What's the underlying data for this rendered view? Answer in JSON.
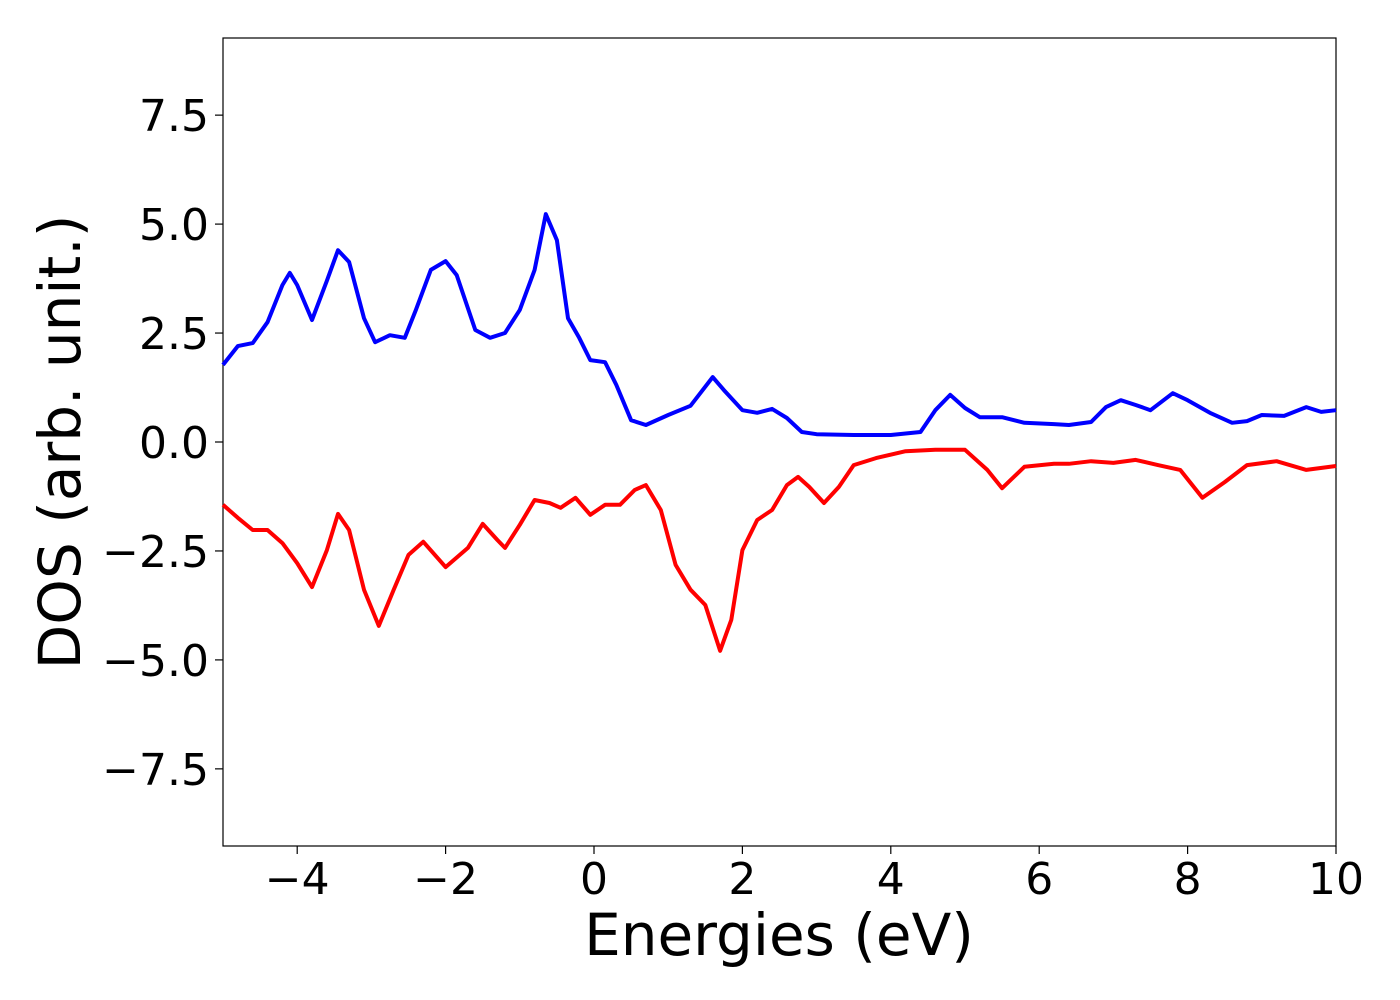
{
  "chart_data": {
    "type": "line",
    "xlabel": "Energies (eV)",
    "ylabel": "DOS (arb. unit.)",
    "xlim": [
      -5,
      10
    ],
    "ylim": [
      -9.27,
      9.27
    ],
    "xticks": [
      {
        "value": -4,
        "label": "−4"
      },
      {
        "value": -2,
        "label": "−2"
      },
      0,
      2,
      4,
      6,
      8,
      10
    ],
    "yticks": [
      {
        "value": -7.5,
        "label": "−7.5"
      },
      {
        "value": -5,
        "label": "−5.0"
      },
      {
        "value": -2.5,
        "label": "−2.5"
      },
      {
        "value": 0,
        "label": "0.0"
      },
      2.5,
      {
        "value": 5,
        "label": "5.0"
      },
      7.5
    ],
    "series": [
      {
        "color": "#0000ff",
        "x": [
          -5.0,
          -4.8,
          -4.6,
          -4.4,
          -4.2,
          -4.1,
          -4.0,
          -3.8,
          -3.6,
          -3.45,
          -3.3,
          -3.1,
          -2.95,
          -2.75,
          -2.55,
          -2.4,
          -2.2,
          -2.0,
          -1.85,
          -1.6,
          -1.4,
          -1.2,
          -1.0,
          -0.8,
          -0.65,
          -0.5,
          -0.35,
          -0.2,
          -0.05,
          0.15,
          0.3,
          0.5,
          0.7,
          1.0,
          1.3,
          1.6,
          1.75,
          2.0,
          2.2,
          2.4,
          2.6,
          2.8,
          3.0,
          3.5,
          4.0,
          4.4,
          4.6,
          4.8,
          5.0,
          5.2,
          5.5,
          5.8,
          6.2,
          6.4,
          6.7,
          6.9,
          7.1,
          7.3,
          7.5,
          7.8,
          8.0,
          8.3,
          8.6,
          8.8,
          9.0,
          9.3,
          9.6,
          9.8,
          10.0
        ],
        "values": [
          1.77,
          2.2,
          2.27,
          2.75,
          3.6,
          3.88,
          3.6,
          2.8,
          3.7,
          4.4,
          4.13,
          2.84,
          2.29,
          2.45,
          2.39,
          3.03,
          3.95,
          4.15,
          3.83,
          2.57,
          2.39,
          2.5,
          3.03,
          3.95,
          5.23,
          4.63,
          2.84,
          2.39,
          1.88,
          1.83,
          1.31,
          0.5,
          0.39,
          0.62,
          0.83,
          1.49,
          1.19,
          0.73,
          0.67,
          0.76,
          0.55,
          0.23,
          0.18,
          0.16,
          0.16,
          0.23,
          0.73,
          1.08,
          0.78,
          0.57,
          0.57,
          0.44,
          0.41,
          0.39,
          0.46,
          0.8,
          0.96,
          0.85,
          0.73,
          1.12,
          0.96,
          0.67,
          0.44,
          0.48,
          0.62,
          0.6,
          0.8,
          0.69,
          0.73
        ]
      },
      {
        "color": "#ff0000",
        "x": [
          -5.0,
          -4.8,
          -4.6,
          -4.4,
          -4.2,
          -4.0,
          -3.8,
          -3.6,
          -3.45,
          -3.3,
          -3.1,
          -2.9,
          -2.7,
          -2.5,
          -2.3,
          -2.0,
          -1.7,
          -1.5,
          -1.3,
          -1.2,
          -1.0,
          -0.8,
          -0.6,
          -0.45,
          -0.25,
          -0.05,
          0.15,
          0.35,
          0.55,
          0.7,
          0.9,
          1.1,
          1.3,
          1.5,
          1.7,
          1.85,
          2.0,
          2.2,
          2.4,
          2.6,
          2.75,
          2.9,
          3.1,
          3.3,
          3.5,
          3.8,
          4.2,
          4.6,
          5.0,
          5.3,
          5.5,
          5.8,
          6.2,
          6.4,
          6.7,
          7.0,
          7.3,
          7.6,
          7.9,
          8.2,
          8.5,
          8.8,
          9.2,
          9.6,
          10.0
        ],
        "values": [
          -1.44,
          -1.74,
          -2.02,
          -2.02,
          -2.32,
          -2.78,
          -3.33,
          -2.48,
          -1.65,
          -2.02,
          -3.39,
          -4.22,
          -3.39,
          -2.59,
          -2.29,
          -2.87,
          -2.43,
          -1.88,
          -2.25,
          -2.43,
          -1.9,
          -1.33,
          -1.4,
          -1.51,
          -1.28,
          -1.67,
          -1.44,
          -1.44,
          -1.1,
          -0.99,
          -1.56,
          -2.82,
          -3.39,
          -3.74,
          -4.79,
          -4.08,
          -2.48,
          -1.79,
          -1.56,
          -0.99,
          -0.8,
          -1.03,
          -1.4,
          -1.03,
          -0.53,
          -0.37,
          -0.21,
          -0.18,
          -0.18,
          -0.64,
          -1.06,
          -0.57,
          -0.5,
          -0.5,
          -0.44,
          -0.48,
          -0.41,
          -0.53,
          -0.64,
          -1.28,
          -0.92,
          -0.53,
          -0.44,
          -0.64,
          -0.55
        ]
      }
    ]
  }
}
